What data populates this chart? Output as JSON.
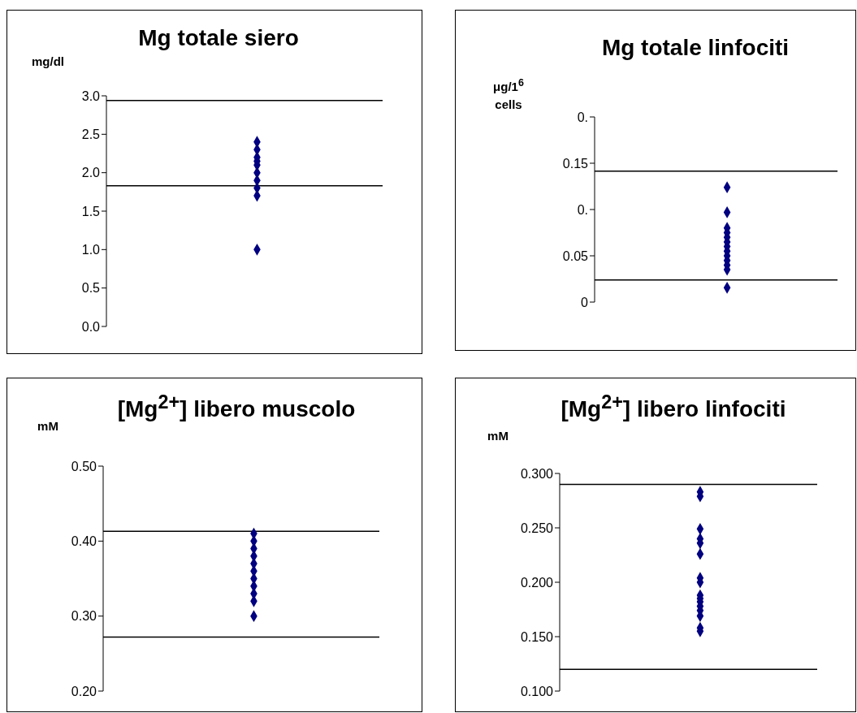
{
  "chart_data": [
    {
      "type": "scatter",
      "title": "Mg totale siero",
      "ylabel": "mg/dl",
      "categories": [
        null
      ],
      "tick_labels": "y",
      "marker": "diamond",
      "series": [
        {
          "color": "#000080",
          "x": [
            null,
            null,
            null,
            null,
            null,
            null,
            null,
            null,
            null,
            null
          ],
          "values": [
            2.4,
            2.3,
            2.2,
            2.15,
            2.1,
            2.0,
            1.9,
            1.8,
            1.7,
            1.0
          ]
        }
      ],
      "ylim": [
        0,
        3
      ],
      "yticks": [
        {
          "value": 0,
          "label": "0.0"
        },
        0.5,
        {
          "value": 1,
          "label": "1.0"
        },
        1.5,
        {
          "value": 2,
          "label": "2.0"
        },
        2.5,
        {
          "value": 3,
          "label": "3.0"
        }
      ],
      "ref_lines": [
        {
          "axis": "y",
          "value": 2.94,
          "color": "#000000"
        },
        {
          "axis": "y",
          "value": 1.83,
          "color": "#000000"
        }
      ]
    },
    {
      "type": "scatter",
      "title": "Mg totale linfociti",
      "ylabel": "μg/1$^{6}$ cells",
      "categories": [
        null
      ],
      "tick_labels": "y",
      "marker": "diamond",
      "series": [
        {
          "color": "#000080",
          "x": [
            null,
            null,
            null,
            null,
            null,
            null,
            null,
            null,
            null,
            null,
            null,
            null,
            null
          ],
          "values": [
            0.124,
            0.097,
            0.08,
            0.075,
            0.07,
            0.065,
            0.06,
            0.055,
            0.05,
            0.045,
            0.04,
            0.035,
            0.0155
          ]
        }
      ],
      "ylim": [
        0,
        0.2
      ],
      "yticks": [
        0,
        0.05,
        {
          "value": 0.1,
          "label": "0."
        },
        0.15,
        {
          "value": 0.2,
          "label": "0."
        }
      ],
      "ref_lines": [
        {
          "axis": "y",
          "value": 0.1415,
          "color": "#000000"
        },
        {
          "axis": "y",
          "value": 0.024,
          "color": "#000000"
        }
      ]
    },
    {
      "type": "scatter",
      "title": "[Mg$^{2+}$] libero muscolo",
      "ylabel": "mM",
      "categories": [
        null
      ],
      "tick_labels": "y",
      "marker": "diamond",
      "series": [
        {
          "color": "#000080",
          "x": [
            null,
            null,
            null,
            null,
            null,
            null,
            null,
            null,
            null,
            null,
            null
          ],
          "values": [
            0.41,
            0.4,
            0.39,
            0.38,
            0.37,
            0.36,
            0.35,
            0.34,
            0.33,
            0.32,
            0.3
          ]
        }
      ],
      "ylim": [
        0.2,
        0.5
      ],
      "yticks": [
        {
          "value": 0.2,
          "label": "0.20"
        },
        {
          "value": 0.3,
          "label": "0.30"
        },
        {
          "value": 0.4,
          "label": "0.40"
        },
        {
          "value": 0.5,
          "label": "0.50"
        }
      ],
      "ref_lines": [
        {
          "axis": "y",
          "value": 0.413,
          "color": "#000000"
        },
        {
          "axis": "y",
          "value": 0.272,
          "color": "#000000"
        }
      ]
    },
    {
      "type": "scatter",
      "title": "[Mg$^{2+}$] libero linfociti",
      "ylabel": "mM",
      "categories": [
        null
      ],
      "tick_labels": "y",
      "marker": "diamond",
      "series": [
        {
          "color": "#000080",
          "x": [
            null,
            null,
            null,
            null,
            null,
            null,
            null,
            null,
            null,
            null,
            null,
            null,
            null,
            null,
            null,
            null
          ],
          "values": [
            0.283,
            0.279,
            0.249,
            0.24,
            0.236,
            0.226,
            0.204,
            0.2,
            0.188,
            0.185,
            0.182,
            0.178,
            0.174,
            0.169,
            0.158,
            0.155
          ]
        }
      ],
      "ylim": [
        0.1,
        0.3
      ],
      "yticks": [
        {
          "value": 0.1,
          "label": "0.100"
        },
        {
          "value": 0.15,
          "label": "0.150"
        },
        {
          "value": 0.2,
          "label": "0.200"
        },
        {
          "value": 0.25,
          "label": "0.250"
        },
        {
          "value": 0.3,
          "label": "0.300"
        }
      ],
      "ref_lines": [
        {
          "axis": "y",
          "value": 0.29,
          "color": "#000000"
        },
        {
          "axis": "y",
          "value": 0.12,
          "color": "#000000"
        }
      ]
    }
  ]
}
